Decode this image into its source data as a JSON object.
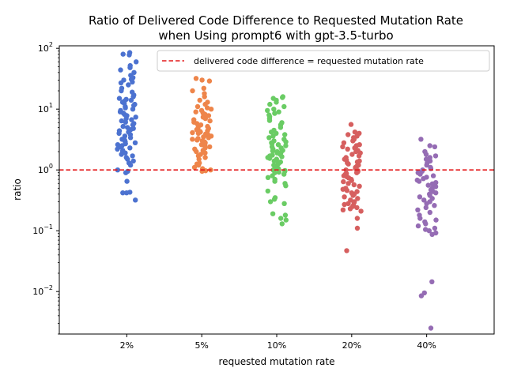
{
  "chart_data": {
    "type": "scatter",
    "title": "Ratio of Delivered Code Difference to Requested Mutation Rate",
    "subtitle": "when Using prompt6 with gpt-3.5-turbo",
    "xlabel": "requested mutation rate",
    "ylabel": "ratio",
    "y_scale": "log",
    "ylim": [
      0.002,
      110
    ],
    "grid": false,
    "legend_position": "top-right",
    "categories": [
      "2%",
      "5%",
      "10%",
      "20%",
      "40%"
    ],
    "y_ticks": [
      {
        "value": 0.01,
        "label": "10^-2",
        "base": "10",
        "exp": "−2"
      },
      {
        "value": 0.1,
        "label": "10^-1",
        "base": "10",
        "exp": "−1"
      },
      {
        "value": 1,
        "label": "10^0",
        "base": "10",
        "exp": "0"
      },
      {
        "value": 10,
        "label": "10^1",
        "base": "10",
        "exp": "1"
      },
      {
        "value": 100,
        "label": "10^2",
        "base": "10",
        "exp": "2"
      }
    ],
    "reference_line": {
      "y": 1.0,
      "label": "delivered code difference = requested mutation rate",
      "color": "#e41a1c",
      "style": "dashed"
    },
    "series": [
      {
        "category": "2%",
        "color": "#4c72d0",
        "values": [
          85,
          80,
          78,
          60,
          52,
          48,
          44,
          40,
          36,
          33,
          31,
          30,
          28,
          27,
          25,
          22,
          20,
          19,
          17,
          16,
          15,
          14.5,
          14,
          13.5,
          13,
          12.5,
          12,
          11.5,
          11,
          10.5,
          10,
          9.5,
          9,
          8.6,
          8.2,
          7.8,
          7.4,
          7,
          6.7,
          6.4,
          6.1,
          5.8,
          5.5,
          5.2,
          5,
          4.8,
          4.6,
          4.4,
          4.2,
          4,
          3.8,
          3.6,
          3.4,
          3.2,
          3.1,
          3,
          2.9,
          2.8,
          2.7,
          2.6,
          2.5,
          2.4,
          2.3,
          2.2,
          2.1,
          2,
          1.9,
          1.8,
          1.7,
          1.6,
          1.5,
          1.4,
          1.3,
          1.2,
          1.0,
          0.95,
          0.9,
          0.65,
          0.43,
          0.42,
          0.42,
          0.32
        ]
      },
      {
        "category": "5%",
        "color": "#ee854a",
        "values": [
          32,
          30,
          29,
          22,
          20,
          18,
          16,
          14,
          13,
          12,
          11,
          10.5,
          10,
          9.5,
          9,
          8.6,
          8.2,
          7.8,
          7.4,
          7,
          6.7,
          6.4,
          6.1,
          5.8,
          5.5,
          5.2,
          5,
          4.8,
          4.6,
          4.4,
          4.3,
          4.2,
          4.1,
          4,
          3.9,
          3.8,
          3.7,
          3.6,
          3.5,
          3.4,
          3.3,
          3.2,
          3.1,
          3,
          2.9,
          2.8,
          2.7,
          2.6,
          2.5,
          2.4,
          2.3,
          2.2,
          2.1,
          2,
          1.9,
          1.8,
          1.7,
          1.6,
          1.5,
          1.3,
          1.25,
          1.2,
          1.1,
          1.05,
          1.0,
          0.97,
          0.95
        ]
      },
      {
        "category": "10%",
        "color": "#6acc64",
        "values": [
          16,
          15.5,
          15,
          14,
          13,
          12,
          11,
          10,
          9.5,
          9,
          8.5,
          8,
          7.5,
          7,
          6.5,
          6,
          5.5,
          5,
          4.5,
          4.2,
          4,
          3.8,
          3.6,
          3.4,
          3.2,
          3,
          2.9,
          2.8,
          2.7,
          2.6,
          2.5,
          2.4,
          2.3,
          2.2,
          2.1,
          2.05,
          2,
          1.95,
          1.9,
          1.85,
          1.8,
          1.75,
          1.7,
          1.65,
          1.6,
          1.55,
          1.5,
          1.45,
          1.4,
          1.35,
          1.3,
          1.25,
          1.2,
          1.15,
          1.1,
          1.05,
          1.0,
          0.98,
          0.95,
          0.92,
          0.9,
          0.85,
          0.8,
          0.75,
          0.7,
          0.65,
          0.6,
          0.55,
          0.45,
          0.35,
          0.33,
          0.3,
          0.28,
          0.19,
          0.18,
          0.16,
          0.15,
          0.13
        ]
      },
      {
        "category": "20%",
        "color": "#d65f5f",
        "values": [
          5.6,
          4.2,
          4,
          3.8,
          3.6,
          3.4,
          3.2,
          3,
          2.8,
          2.6,
          2.5,
          2.4,
          2.3,
          2.2,
          2.1,
          2,
          1.9,
          1.8,
          1.7,
          1.6,
          1.5,
          1.45,
          1.4,
          1.35,
          1.3,
          1.25,
          1.2,
          1.15,
          1.1,
          1.05,
          1.0,
          0.97,
          0.94,
          0.9,
          0.87,
          0.84,
          0.8,
          0.77,
          0.74,
          0.7,
          0.67,
          0.64,
          0.6,
          0.57,
          0.54,
          0.5,
          0.48,
          0.46,
          0.44,
          0.42,
          0.4,
          0.38,
          0.36,
          0.34,
          0.32,
          0.3,
          0.29,
          0.28,
          0.27,
          0.26,
          0.25,
          0.24,
          0.23,
          0.22,
          0.21,
          0.16,
          0.11,
          0.047
        ]
      },
      {
        "category": "40%",
        "color": "#956cb4",
        "values": [
          3.2,
          2.5,
          2.4,
          2.0,
          1.8,
          1.7,
          1.6,
          1.5,
          1.4,
          1.3,
          1.2,
          1.1,
          1.05,
          1.0,
          0.95,
          0.9,
          0.85,
          0.8,
          0.76,
          0.72,
          0.68,
          0.65,
          0.62,
          0.59,
          0.56,
          0.53,
          0.5,
          0.47,
          0.44,
          0.42,
          0.4,
          0.38,
          0.36,
          0.34,
          0.32,
          0.3,
          0.28,
          0.26,
          0.24,
          0.22,
          0.2,
          0.18,
          0.16,
          0.15,
          0.14,
          0.13,
          0.12,
          0.11,
          0.105,
          0.1,
          0.092,
          0.087,
          0.0145,
          0.0095,
          0.0085,
          0.0025
        ]
      }
    ]
  }
}
